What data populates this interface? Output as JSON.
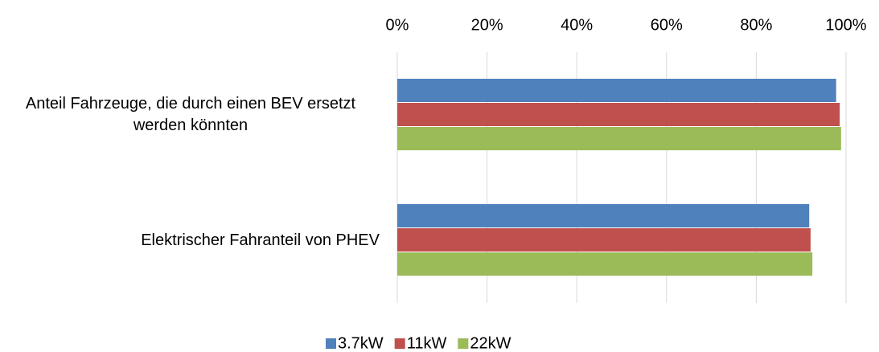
{
  "chart_data": {
    "type": "hbar",
    "categories": [
      "Anteil Fahrzeuge, die durch einen BEV ersetzt werden könnten",
      "Elektrischer Fahranteil von PHEV"
    ],
    "series": [
      {
        "name": "3.7kW",
        "color": "#4f81bd",
        "values": [
          97.8,
          91.8
        ]
      },
      {
        "name": "11kW",
        "color": "#c0504d",
        "values": [
          98.6,
          92.1
        ]
      },
      {
        "name": "22kW",
        "color": "#9bbb59",
        "values": [
          98.9,
          92.5
        ]
      }
    ],
    "xlim": [
      0,
      100
    ],
    "xticks": [
      {
        "value": 0,
        "label": "0%"
      },
      {
        "value": 20,
        "label": "20%"
      },
      {
        "value": 40,
        "label": "40%"
      },
      {
        "value": 60,
        "label": "60%"
      },
      {
        "value": 80,
        "label": "80%"
      },
      {
        "value": 100,
        "label": "100%"
      }
    ],
    "grid": true,
    "legend": "bottom"
  }
}
